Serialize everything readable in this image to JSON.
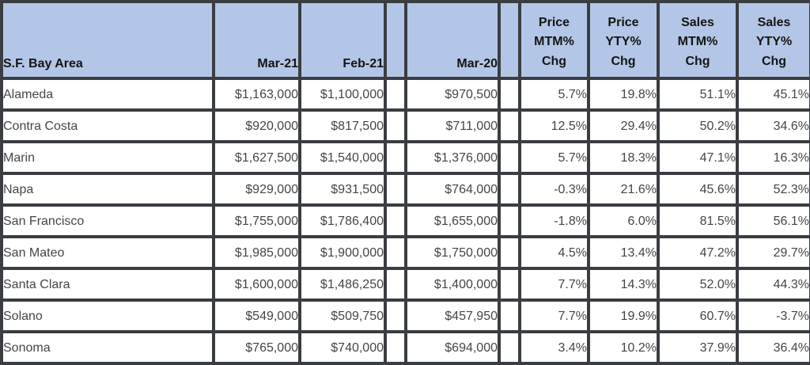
{
  "colors": {
    "header_bg": "#b4c6e7",
    "border": "#3a3d42",
    "header_text": "#141414",
    "cell_text": "#454545"
  },
  "chart_data": {
    "type": "table",
    "columns": [
      {
        "name": "area",
        "label": "S.F. Bay Area",
        "align": "left",
        "gap": false
      },
      {
        "name": "mar21",
        "label": "Mar-21",
        "align": "right",
        "gap": false
      },
      {
        "name": "feb21",
        "label": "Feb-21",
        "align": "right",
        "gap": false
      },
      {
        "name": "spacer1",
        "label": "",
        "align": "gap",
        "gap": true
      },
      {
        "name": "mar20",
        "label": "Mar-20",
        "align": "right",
        "gap": false
      },
      {
        "name": "spacer2",
        "label": "",
        "align": "gap",
        "gap": true
      },
      {
        "name": "price-mtm",
        "label": "Price\nMTM%\nChg",
        "align": "right",
        "gap": false
      },
      {
        "name": "price-yty",
        "label": "Price\nYTY%\nChg",
        "align": "right",
        "gap": false
      },
      {
        "name": "sales-mtm",
        "label": "Sales\nMTM%\nChg",
        "align": "right",
        "gap": false
      },
      {
        "name": "sales-yty",
        "label": "Sales\nYTY%\nChg",
        "align": "right",
        "gap": false
      }
    ],
    "rows": [
      [
        "Alameda",
        "$1,163,000",
        "$1,100,000",
        "",
        "$970,500",
        "",
        "5.7%",
        "19.8%",
        "51.1%",
        "45.1%"
      ],
      [
        "Contra Costa",
        "$920,000",
        "$817,500",
        "",
        "$711,000",
        "",
        "12.5%",
        "29.4%",
        "50.2%",
        "34.6%"
      ],
      [
        "Marin",
        "$1,627,500",
        "$1,540,000",
        "",
        "$1,376,000",
        "",
        "5.7%",
        "18.3%",
        "47.1%",
        "16.3%"
      ],
      [
        "Napa",
        "$929,000",
        "$931,500",
        "",
        "$764,000",
        "",
        "-0.3%",
        "21.6%",
        "45.6%",
        "52.3%"
      ],
      [
        "San Francisco",
        "$1,755,000",
        "$1,786,400",
        "",
        "$1,655,000",
        "",
        "-1.8%",
        "6.0%",
        "81.5%",
        "56.1%"
      ],
      [
        "San Mateo",
        "$1,985,000",
        "$1,900,000",
        "",
        "$1,750,000",
        "",
        "4.5%",
        "13.4%",
        "47.2%",
        "29.7%"
      ],
      [
        "Santa Clara",
        "$1,600,000",
        "$1,486,250",
        "",
        "$1,400,000",
        "",
        "7.7%",
        "14.3%",
        "52.0%",
        "44.3%"
      ],
      [
        "Solano",
        "$549,000",
        "$509,750",
        "",
        "$457,950",
        "",
        "7.7%",
        "19.9%",
        "60.7%",
        "-3.7%"
      ],
      [
        "Sonoma",
        "$765,000",
        "$740,000",
        "",
        "$694,000",
        "",
        "3.4%",
        "10.2%",
        "37.9%",
        "36.4%"
      ]
    ]
  }
}
